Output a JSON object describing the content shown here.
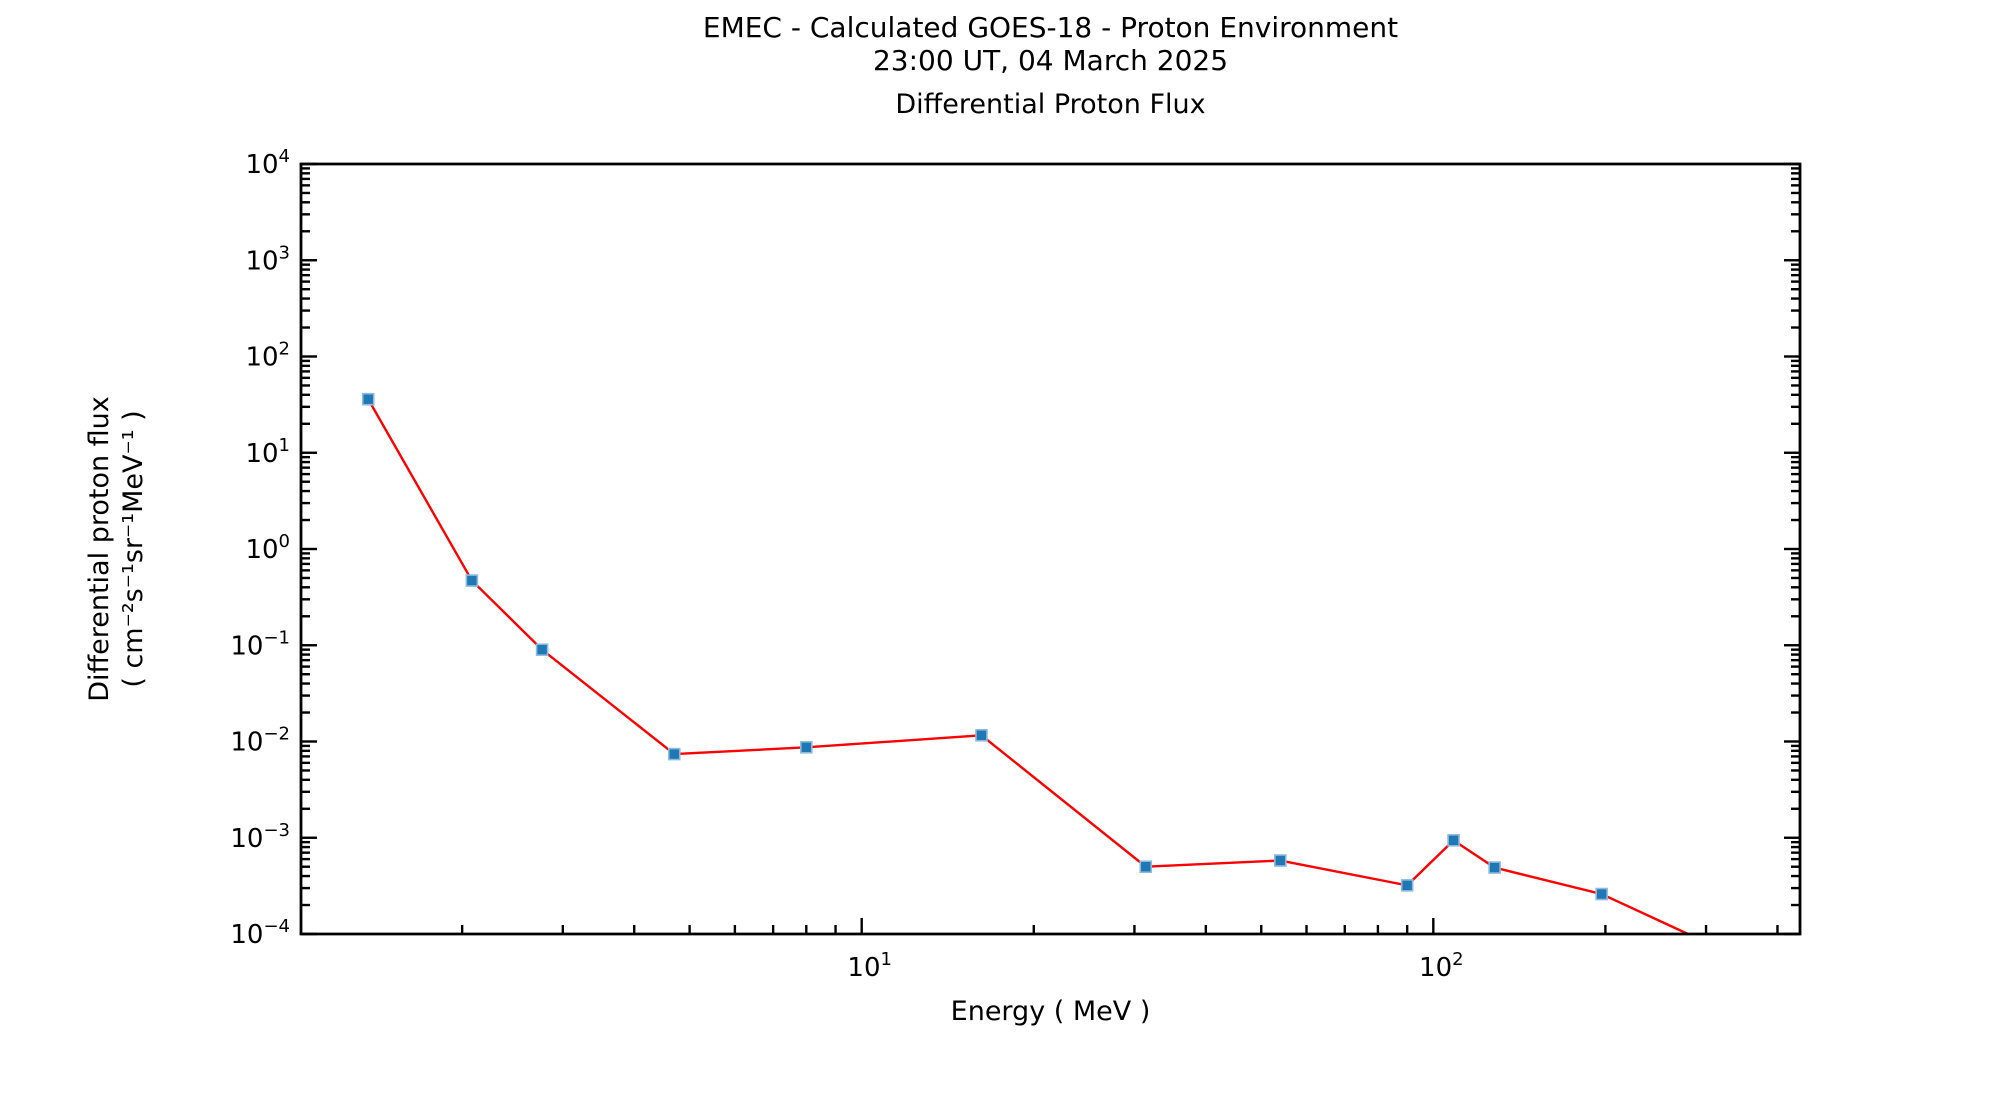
{
  "figure": {
    "background_color": "#ffffff",
    "text_color": "#000000"
  },
  "chart_data": {
    "type": "line",
    "suptitle_line1": "EMEC - Calculated GOES-18 - Proton Environment",
    "suptitle_line2": "23:00 UT, 04 March 2025",
    "title": "Differential Proton Flux",
    "xlabel": "Energy ( MeV )",
    "ylabel_line1": "Differential proton flux",
    "ylabel_line2": "( cm⁻²s⁻¹sr⁻¹MeV⁻¹ )",
    "x_scale": "log",
    "y_scale": "log",
    "xlim": [
      1.045,
      438
    ],
    "ylim": [
      0.0001,
      10000
    ],
    "x_major_tick_exponents": [
      1,
      2
    ],
    "y_major_tick_exponents": [
      4,
      3,
      2,
      1,
      0,
      -1,
      -2,
      -3,
      -4
    ],
    "grid": false,
    "legend": "none",
    "line_color": "#ff0000",
    "marker_color": "#1f77b4",
    "marker_edge_color": "#8dbbdf",
    "marker_shape": "square",
    "series": [
      {
        "name": "differential proton flux",
        "x": [
          1.37,
          2.08,
          2.76,
          4.7,
          8.0,
          16.2,
          31.4,
          54,
          90,
          108.5,
          128,
          197,
          336
        ],
        "y": [
          36,
          0.47,
          0.09,
          0.0074,
          0.0087,
          0.0116,
          0.0005,
          0.00058,
          0.00032,
          0.00094,
          0.00049,
          0.00026,
          6e-05
        ]
      }
    ]
  }
}
